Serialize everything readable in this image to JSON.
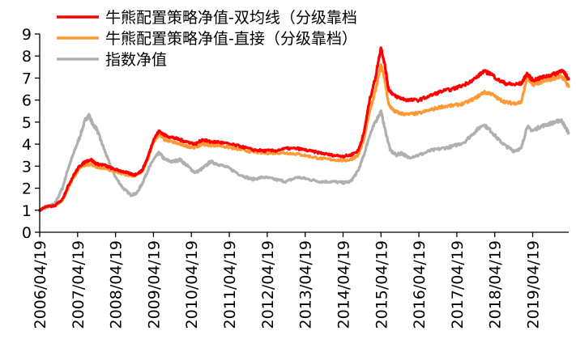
{
  "chart_data": {
    "type": "line",
    "legend_position": "top-left",
    "grid": false,
    "ylim": [
      0,
      9
    ],
    "y_ticks": [
      "0",
      "1",
      "2",
      "3",
      "4",
      "5",
      "6",
      "7",
      "8",
      "9"
    ],
    "x_tick_labels": [
      "2006/04/19",
      "2007/04/19",
      "2008/04/19",
      "2009/04/19",
      "2010/04/19",
      "2011/04/19",
      "2012/04/19",
      "2013/04/19",
      "2014/04/19",
      "2015/04/19",
      "2016/04/19",
      "2017/04/19",
      "2018/04/19",
      "2019/04/19"
    ],
    "x_range": [
      2006.3,
      2020.25
    ],
    "series": [
      {
        "name": "牛熊配置策略净值-双均线（分级靠档",
        "color": "#ff0000",
        "points": [
          [
            2006.3,
            1.0
          ],
          [
            2006.45,
            1.15
          ],
          [
            2006.7,
            1.2
          ],
          [
            2006.9,
            1.5
          ],
          [
            2007.05,
            2.1
          ],
          [
            2007.2,
            2.6
          ],
          [
            2007.35,
            3.0
          ],
          [
            2007.5,
            3.2
          ],
          [
            2007.65,
            3.3
          ],
          [
            2007.8,
            3.1
          ],
          [
            2008.0,
            3.05
          ],
          [
            2008.2,
            2.9
          ],
          [
            2008.4,
            2.8
          ],
          [
            2008.6,
            2.7
          ],
          [
            2008.8,
            2.6
          ],
          [
            2009.0,
            2.8
          ],
          [
            2009.15,
            3.4
          ],
          [
            2009.3,
            4.2
          ],
          [
            2009.45,
            4.6
          ],
          [
            2009.6,
            4.4
          ],
          [
            2009.8,
            4.3
          ],
          [
            2010.0,
            4.2
          ],
          [
            2010.2,
            4.1
          ],
          [
            2010.4,
            4.0
          ],
          [
            2010.6,
            4.2
          ],
          [
            2010.8,
            4.1
          ],
          [
            2011.0,
            4.1
          ],
          [
            2011.3,
            4.0
          ],
          [
            2011.6,
            3.9
          ],
          [
            2011.9,
            3.75
          ],
          [
            2012.2,
            3.7
          ],
          [
            2012.5,
            3.7
          ],
          [
            2012.8,
            3.8
          ],
          [
            2013.1,
            3.8
          ],
          [
            2013.4,
            3.7
          ],
          [
            2013.7,
            3.6
          ],
          [
            2014.0,
            3.5
          ],
          [
            2014.3,
            3.45
          ],
          [
            2014.5,
            3.5
          ],
          [
            2014.7,
            3.7
          ],
          [
            2014.85,
            4.5
          ],
          [
            2015.0,
            6.0
          ],
          [
            2015.15,
            7.0
          ],
          [
            2015.3,
            8.4
          ],
          [
            2015.4,
            7.6
          ],
          [
            2015.5,
            6.5
          ],
          [
            2015.65,
            6.2
          ],
          [
            2015.8,
            6.1
          ],
          [
            2016.0,
            6.0
          ],
          [
            2016.3,
            6.0
          ],
          [
            2016.6,
            6.2
          ],
          [
            2016.9,
            6.4
          ],
          [
            2017.2,
            6.5
          ],
          [
            2017.5,
            6.7
          ],
          [
            2017.8,
            7.0
          ],
          [
            2018.0,
            7.3
          ],
          [
            2018.2,
            7.2
          ],
          [
            2018.4,
            6.9
          ],
          [
            2018.6,
            6.75
          ],
          [
            2018.8,
            6.7
          ],
          [
            2019.0,
            6.75
          ],
          [
            2019.15,
            7.2
          ],
          [
            2019.3,
            6.9
          ],
          [
            2019.5,
            7.0
          ],
          [
            2019.7,
            7.1
          ],
          [
            2019.9,
            7.2
          ],
          [
            2020.05,
            7.35
          ],
          [
            2020.15,
            7.2
          ],
          [
            2020.25,
            6.95
          ]
        ]
      },
      {
        "name": "牛熊配置策略净值-直接（分级靠档）",
        "color": "#ff9933",
        "points": [
          [
            2006.3,
            1.0
          ],
          [
            2006.45,
            1.15
          ],
          [
            2006.7,
            1.2
          ],
          [
            2006.9,
            1.45
          ],
          [
            2007.05,
            2.0
          ],
          [
            2007.2,
            2.5
          ],
          [
            2007.35,
            2.9
          ],
          [
            2007.5,
            3.05
          ],
          [
            2007.65,
            3.1
          ],
          [
            2007.8,
            2.95
          ],
          [
            2008.0,
            2.9
          ],
          [
            2008.2,
            2.8
          ],
          [
            2008.4,
            2.7
          ],
          [
            2008.6,
            2.6
          ],
          [
            2008.8,
            2.55
          ],
          [
            2009.0,
            2.75
          ],
          [
            2009.15,
            3.3
          ],
          [
            2009.3,
            4.1
          ],
          [
            2009.45,
            4.45
          ],
          [
            2009.6,
            4.2
          ],
          [
            2009.8,
            4.1
          ],
          [
            2010.0,
            4.0
          ],
          [
            2010.2,
            3.9
          ],
          [
            2010.4,
            3.85
          ],
          [
            2010.6,
            4.0
          ],
          [
            2010.8,
            3.95
          ],
          [
            2011.0,
            3.95
          ],
          [
            2011.3,
            3.85
          ],
          [
            2011.6,
            3.75
          ],
          [
            2011.9,
            3.65
          ],
          [
            2012.2,
            3.6
          ],
          [
            2012.5,
            3.6
          ],
          [
            2012.8,
            3.6
          ],
          [
            2013.1,
            3.55
          ],
          [
            2013.4,
            3.45
          ],
          [
            2013.7,
            3.35
          ],
          [
            2014.0,
            3.3
          ],
          [
            2014.3,
            3.25
          ],
          [
            2014.5,
            3.3
          ],
          [
            2014.7,
            3.5
          ],
          [
            2014.85,
            4.2
          ],
          [
            2015.0,
            5.5
          ],
          [
            2015.15,
            6.4
          ],
          [
            2015.3,
            7.6
          ],
          [
            2015.4,
            6.9
          ],
          [
            2015.5,
            5.8
          ],
          [
            2015.65,
            5.5
          ],
          [
            2015.8,
            5.4
          ],
          [
            2016.0,
            5.35
          ],
          [
            2016.3,
            5.4
          ],
          [
            2016.6,
            5.55
          ],
          [
            2016.9,
            5.7
          ],
          [
            2017.2,
            5.75
          ],
          [
            2017.5,
            5.85
          ],
          [
            2017.8,
            6.1
          ],
          [
            2018.0,
            6.35
          ],
          [
            2018.2,
            6.3
          ],
          [
            2018.4,
            6.05
          ],
          [
            2018.6,
            5.9
          ],
          [
            2018.8,
            5.85
          ],
          [
            2019.0,
            5.9
          ],
          [
            2019.15,
            7.0
          ],
          [
            2019.3,
            6.7
          ],
          [
            2019.5,
            6.8
          ],
          [
            2019.7,
            6.9
          ],
          [
            2019.9,
            7.0
          ],
          [
            2020.05,
            7.1
          ],
          [
            2020.15,
            6.9
          ],
          [
            2020.25,
            6.6
          ]
        ]
      },
      {
        "name": "指数净值",
        "color": "#b0b0b0",
        "points": [
          [
            2006.3,
            1.0
          ],
          [
            2006.45,
            1.1
          ],
          [
            2006.7,
            1.3
          ],
          [
            2006.9,
            2.0
          ],
          [
            2007.05,
            2.9
          ],
          [
            2007.2,
            3.6
          ],
          [
            2007.35,
            4.3
          ],
          [
            2007.5,
            5.1
          ],
          [
            2007.6,
            5.3
          ],
          [
            2007.7,
            4.9
          ],
          [
            2007.8,
            4.7
          ],
          [
            2007.95,
            4.0
          ],
          [
            2008.1,
            3.3
          ],
          [
            2008.3,
            2.5
          ],
          [
            2008.5,
            2.0
          ],
          [
            2008.7,
            1.7
          ],
          [
            2008.85,
            1.75
          ],
          [
            2009.0,
            2.2
          ],
          [
            2009.15,
            2.8
          ],
          [
            2009.3,
            3.3
          ],
          [
            2009.45,
            3.6
          ],
          [
            2009.6,
            3.3
          ],
          [
            2009.8,
            3.2
          ],
          [
            2010.0,
            3.3
          ],
          [
            2010.2,
            3.0
          ],
          [
            2010.4,
            2.7
          ],
          [
            2010.6,
            2.9
          ],
          [
            2010.8,
            3.2
          ],
          [
            2011.0,
            3.1
          ],
          [
            2011.3,
            2.9
          ],
          [
            2011.6,
            2.6
          ],
          [
            2011.9,
            2.4
          ],
          [
            2012.2,
            2.5
          ],
          [
            2012.5,
            2.4
          ],
          [
            2012.8,
            2.3
          ],
          [
            2013.1,
            2.5
          ],
          [
            2013.4,
            2.4
          ],
          [
            2013.7,
            2.3
          ],
          [
            2014.0,
            2.3
          ],
          [
            2014.3,
            2.25
          ],
          [
            2014.5,
            2.3
          ],
          [
            2014.7,
            2.8
          ],
          [
            2014.85,
            3.5
          ],
          [
            2015.0,
            4.4
          ],
          [
            2015.15,
            5.0
          ],
          [
            2015.3,
            5.5
          ],
          [
            2015.4,
            4.7
          ],
          [
            2015.55,
            3.7
          ],
          [
            2015.7,
            3.5
          ],
          [
            2015.85,
            3.6
          ],
          [
            2016.0,
            3.4
          ],
          [
            2016.3,
            3.5
          ],
          [
            2016.6,
            3.7
          ],
          [
            2016.9,
            3.8
          ],
          [
            2017.2,
            3.9
          ],
          [
            2017.5,
            4.1
          ],
          [
            2017.8,
            4.6
          ],
          [
            2018.0,
            4.9
          ],
          [
            2018.2,
            4.6
          ],
          [
            2018.4,
            4.2
          ],
          [
            2018.6,
            3.9
          ],
          [
            2018.8,
            3.7
          ],
          [
            2019.0,
            3.8
          ],
          [
            2019.15,
            4.8
          ],
          [
            2019.3,
            4.6
          ],
          [
            2019.5,
            4.8
          ],
          [
            2019.7,
            4.9
          ],
          [
            2019.9,
            5.0
          ],
          [
            2020.05,
            5.1
          ],
          [
            2020.15,
            4.8
          ],
          [
            2020.25,
            4.5
          ]
        ]
      }
    ]
  }
}
